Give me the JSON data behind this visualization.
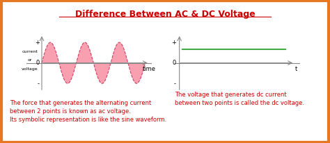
{
  "title": "Difference Between AC & DC Voltage",
  "title_color": "#cc0000",
  "title_fontsize": 9,
  "bg_color": "#ffffff",
  "border_color": "#e87722",
  "ac_ylabel_lines": [
    "current",
    "or",
    "voltage"
  ],
  "ac_xlabel": "time",
  "ac_plus": "+",
  "ac_minus": "-",
  "ac_zero": "0",
  "dc_plus": "+",
  "dc_minus": "-",
  "dc_zero": "0",
  "dc_xlabel": "t",
  "ac_text": "The force that generates the alternating current\nbetween 2 points is known as ac voltage.\nIts symbolic representation is like the sine waveform.",
  "dc_text": "The voltage that generates dc current\nbetween two points is called the dc voltage.",
  "text_color": "#cc0000",
  "ac_wave_color": "#f8a0b0",
  "ac_wave_edge": "#d04060",
  "dc_line_color": "#44aa44",
  "axis_color": "#888888",
  "text_fontsize": 6.0,
  "sine_periods": 3,
  "sine_amplitude": 1.0
}
